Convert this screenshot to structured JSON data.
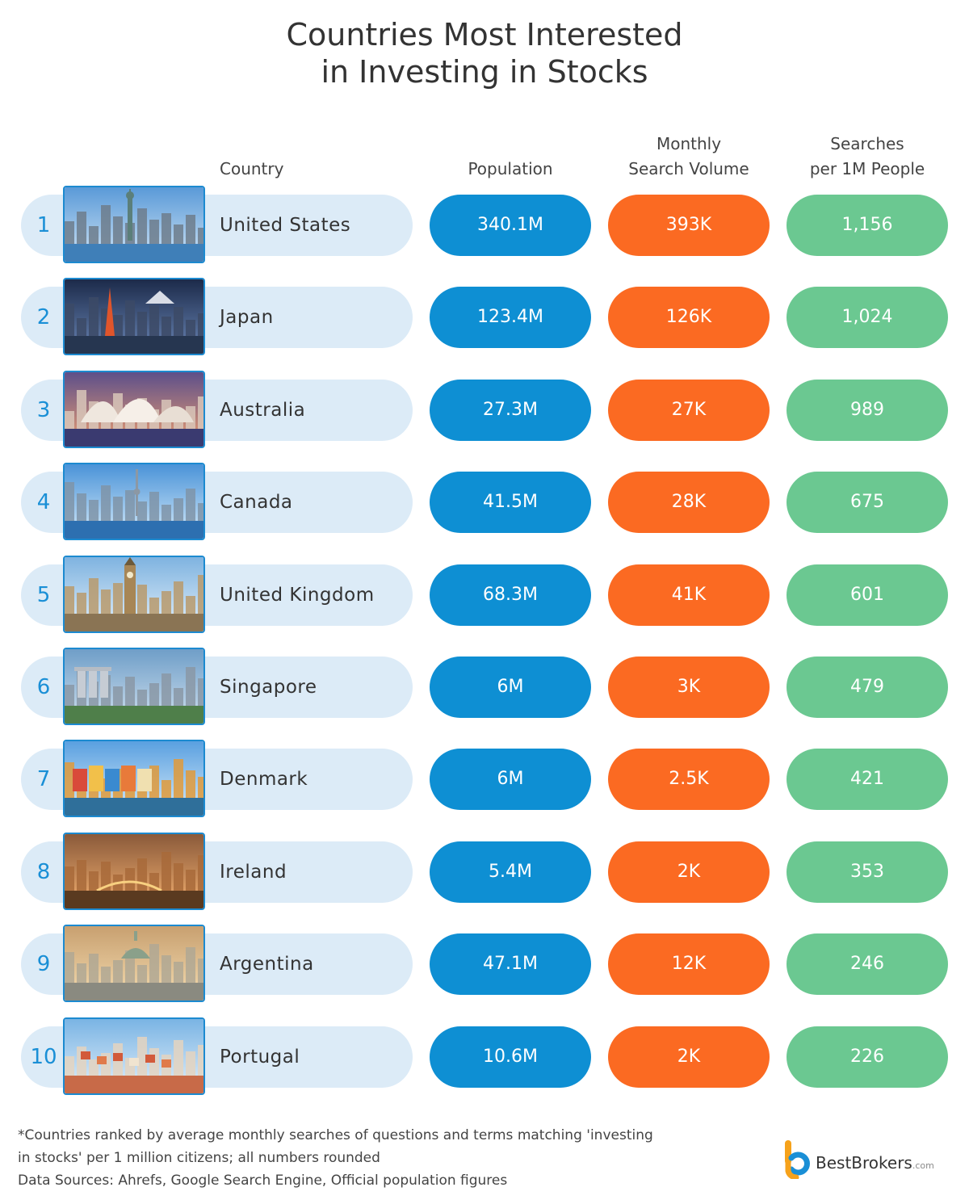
{
  "title_line1": "Countries Most Interested",
  "title_line2": "in Investing in Stocks",
  "headers": {
    "country": "Country",
    "population": "Population",
    "msv_line1": "Monthly",
    "msv_line2": "Search Volume",
    "spm_line1": "Searches",
    "spm_line2": "per 1M People"
  },
  "rows": [
    {
      "rank": "1",
      "country": "United States",
      "population": "340.1M",
      "msv": "393K",
      "spm": "1,156",
      "icon": "statue-of-liberty-icon"
    },
    {
      "rank": "2",
      "country": "Japan",
      "population": "123.4M",
      "msv": "126K",
      "spm": "1,024",
      "icon": "tokyo-skyline-icon"
    },
    {
      "rank": "3",
      "country": "Australia",
      "population": "27.3M",
      "msv": "27K",
      "spm": "989",
      "icon": "sydney-opera-house-icon"
    },
    {
      "rank": "4",
      "country": "Canada",
      "population": "41.5M",
      "msv": "28K",
      "spm": "675",
      "icon": "toronto-skyline-icon"
    },
    {
      "rank": "5",
      "country": "United Kingdom",
      "population": "68.3M",
      "msv": "41K",
      "spm": "601",
      "icon": "big-ben-icon"
    },
    {
      "rank": "6",
      "country": "Singapore",
      "population": "6M",
      "msv": "3K",
      "spm": "479",
      "icon": "marina-bay-icon"
    },
    {
      "rank": "7",
      "country": "Denmark",
      "population": "6M",
      "msv": "2.5K",
      "spm": "421",
      "icon": "nyhavn-icon"
    },
    {
      "rank": "8",
      "country": "Ireland",
      "population": "5.4M",
      "msv": "2K",
      "spm": "353",
      "icon": "dublin-river-icon"
    },
    {
      "rank": "9",
      "country": "Argentina",
      "population": "47.1M",
      "msv": "12K",
      "spm": "246",
      "icon": "buenos-aires-icon"
    },
    {
      "rank": "10",
      "country": "Portugal",
      "population": "10.6M",
      "msv": "2K",
      "spm": "226",
      "icon": "lisbon-hillside-icon"
    }
  ],
  "footnote_line1": "*Countries ranked by average monthly searches of questions and terms matching 'investing",
  "footnote_line2": "in stocks' per 1 million citizens; all numbers rounded",
  "footnote_line3": "Data Sources: Ahrefs, Google Search Engine, Official population figures",
  "brand_name": "BestBrokers",
  "brand_suffix": ".com",
  "colors": {
    "population": "#0e8fd3",
    "search_volume": "#fb6a22",
    "searches_per_1m": "#6bc891",
    "country_pill": "#dcebf7",
    "rank": "#1a8fd6"
  },
  "chart_data": {
    "type": "table",
    "title": "Countries Most Interested in Investing in Stocks",
    "columns": [
      "Country",
      "Population",
      "Monthly Search Volume",
      "Searches per 1M People"
    ],
    "categories": [
      "United States",
      "Japan",
      "Australia",
      "Canada",
      "United Kingdom",
      "Singapore",
      "Denmark",
      "Ireland",
      "Argentina",
      "Portugal"
    ],
    "series": [
      {
        "name": "Population",
        "values": [
          "340.1M",
          "123.4M",
          "27.3M",
          "41.5M",
          "68.3M",
          "6M",
          "6M",
          "5.4M",
          "47.1M",
          "10.6M"
        ]
      },
      {
        "name": "Monthly Search Volume",
        "values": [
          "393K",
          "126K",
          "27K",
          "28K",
          "41K",
          "3K",
          "2.5K",
          "2K",
          "12K",
          "2K"
        ]
      },
      {
        "name": "Searches per 1M People",
        "values": [
          1156,
          1024,
          989,
          675,
          601,
          479,
          421,
          353,
          246,
          226
        ]
      }
    ]
  }
}
